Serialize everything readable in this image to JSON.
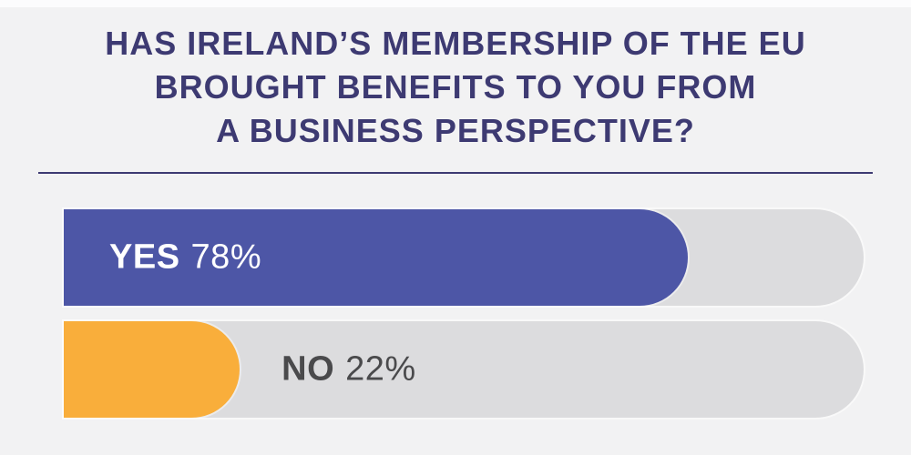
{
  "background_color": "#F2F2F3",
  "top_strip_color": "#FCFCFD",
  "accent_color": "#3D3A72",
  "title": {
    "lines": [
      "HAS IRELAND’S MEMBERSHIP OF THE EU",
      "BROUGHT BENEFITS TO YOU FROM",
      "A BUSINESS PERSPECTIVE?"
    ]
  },
  "bars": [
    {
      "label": "YES",
      "value": 78,
      "value_text": "78%",
      "fill_color": "#4D56A6",
      "track_color": "#DCDCDE",
      "label_placement": "inside",
      "label_color": "#FFFFFF"
    },
    {
      "label": "NO",
      "value": 22,
      "value_text": "22%",
      "fill_color": "#F9AE3B",
      "track_color": "#DCDCDE",
      "label_placement": "outside",
      "label_color": "#4A4A4C"
    }
  ],
  "chart_data": {
    "type": "bar",
    "orientation": "horizontal",
    "title": "HAS IRELAND’S MEMBERSHIP OF THE EU BROUGHT BENEFITS TO YOU FROM A BUSINESS PERSPECTIVE?",
    "categories": [
      "YES",
      "NO"
    ],
    "values": [
      78,
      22
    ],
    "unit": "%",
    "xlim": [
      0,
      100
    ],
    "colors": [
      "#4D56A6",
      "#F9AE3B"
    ],
    "track_color": "#DCDCDE",
    "grid": false,
    "legend": "none",
    "data_labels": [
      "YES 78%",
      "NO 22%"
    ]
  }
}
